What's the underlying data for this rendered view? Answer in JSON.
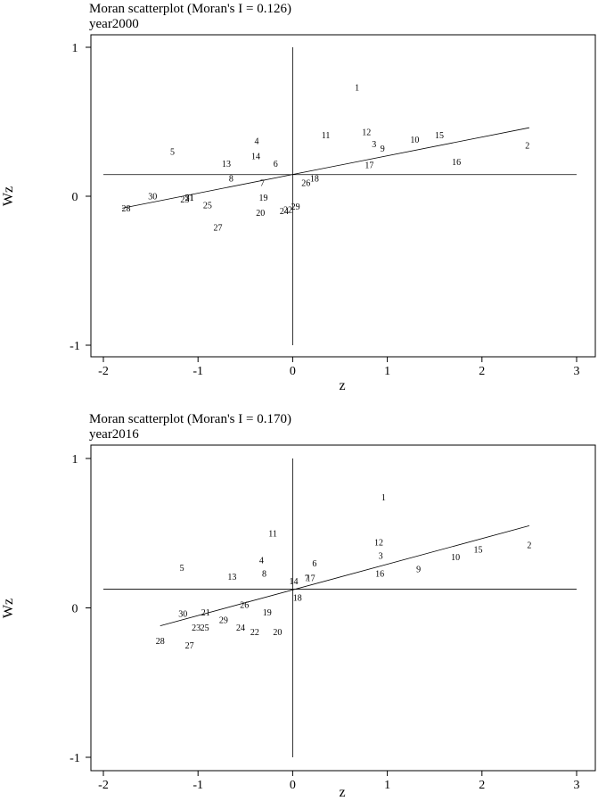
{
  "chart_data": [
    {
      "type": "scatter",
      "title": "Moran scatterplot (Moran's I = 0.126)",
      "subtitle": "year2000",
      "xlabel": "z",
      "ylabel": "Wz",
      "xlim": [
        -2,
        3
      ],
      "ylim": [
        -1,
        1
      ],
      "xticks": [
        "-2",
        "-1",
        "0",
        "1",
        "2",
        "3"
      ],
      "yticks": [
        "-1",
        "0",
        "1"
      ],
      "grid": false,
      "fit_line": {
        "x": [
          -1.8,
          2.5
        ],
        "y": [
          -0.08,
          0.46
        ]
      },
      "mean_x": 0,
      "mean_y": 0.145,
      "points": [
        {
          "label": "1",
          "x": 0.68,
          "y": 0.73
        },
        {
          "label": "2",
          "x": 2.48,
          "y": 0.34
        },
        {
          "label": "3",
          "x": 0.86,
          "y": 0.35
        },
        {
          "label": "4",
          "x": -0.38,
          "y": 0.37
        },
        {
          "label": "5",
          "x": -1.27,
          "y": 0.3
        },
        {
          "label": "6",
          "x": -0.18,
          "y": 0.22
        },
        {
          "label": "7",
          "x": -0.32,
          "y": 0.09
        },
        {
          "label": "8",
          "x": -0.65,
          "y": 0.12
        },
        {
          "label": "9",
          "x": 0.95,
          "y": 0.32
        },
        {
          "label": "10",
          "x": 1.29,
          "y": 0.38
        },
        {
          "label": "11",
          "x": 0.35,
          "y": 0.41
        },
        {
          "label": "12",
          "x": 0.78,
          "y": 0.43
        },
        {
          "label": "13",
          "x": -0.7,
          "y": 0.22
        },
        {
          "label": "14",
          "x": -0.39,
          "y": 0.27
        },
        {
          "label": "15",
          "x": 1.55,
          "y": 0.41
        },
        {
          "label": "16",
          "x": 1.73,
          "y": 0.23
        },
        {
          "label": "17",
          "x": 0.81,
          "y": 0.21
        },
        {
          "label": "18",
          "x": 0.23,
          "y": 0.12
        },
        {
          "label": "19",
          "x": -0.31,
          "y": -0.01
        },
        {
          "label": "20",
          "x": -0.34,
          "y": -0.11
        },
        {
          "label": "21",
          "x": -1.09,
          "y": -0.01
        },
        {
          "label": "22",
          "x": -0.05,
          "y": -0.09
        },
        {
          "label": "23",
          "x": -1.14,
          "y": -0.02
        },
        {
          "label": "24",
          "x": -0.09,
          "y": -0.1
        },
        {
          "label": "25",
          "x": -0.9,
          "y": -0.06
        },
        {
          "label": "26",
          "x": 0.14,
          "y": 0.09
        },
        {
          "label": "27",
          "x": -0.79,
          "y": -0.21
        },
        {
          "label": "28",
          "x": -1.76,
          "y": -0.08
        },
        {
          "label": "29",
          "x": 0.03,
          "y": -0.07
        },
        {
          "label": "30",
          "x": -1.48,
          "y": 0.0
        },
        {
          "label": "31",
          "x": -1.09,
          "y": -0.01
        }
      ]
    },
    {
      "type": "scatter",
      "title": "Moran scatterplot (Moran's I = 0.170)",
      "subtitle": "year2016",
      "xlabel": "z",
      "ylabel": "Wz",
      "xlim": [
        -2,
        3
      ],
      "ylim": [
        -1,
        1
      ],
      "xticks": [
        "-2",
        "-1",
        "0",
        "1",
        "2",
        "3"
      ],
      "yticks": [
        "-1",
        "0",
        "1"
      ],
      "grid": false,
      "fit_line": {
        "x": [
          -1.4,
          2.5
        ],
        "y": [
          -0.12,
          0.55
        ]
      },
      "mean_x": 0,
      "mean_y": 0.125,
      "points": [
        {
          "label": "1",
          "x": 0.96,
          "y": 0.74
        },
        {
          "label": "2",
          "x": 2.5,
          "y": 0.42
        },
        {
          "label": "3",
          "x": 0.93,
          "y": 0.35
        },
        {
          "label": "4",
          "x": -0.33,
          "y": 0.32
        },
        {
          "label": "5",
          "x": -1.17,
          "y": 0.27
        },
        {
          "label": "6",
          "x": 0.23,
          "y": 0.3
        },
        {
          "label": "7",
          "x": 0.15,
          "y": 0.2
        },
        {
          "label": "8",
          "x": -0.3,
          "y": 0.23
        },
        {
          "label": "9",
          "x": 1.33,
          "y": 0.26
        },
        {
          "label": "10",
          "x": 1.72,
          "y": 0.34
        },
        {
          "label": "11",
          "x": -0.21,
          "y": 0.5
        },
        {
          "label": "12",
          "x": 0.91,
          "y": 0.44
        },
        {
          "label": "13",
          "x": -0.64,
          "y": 0.21
        },
        {
          "label": "14",
          "x": 0.01,
          "y": 0.18
        },
        {
          "label": "15",
          "x": 1.96,
          "y": 0.39
        },
        {
          "label": "16",
          "x": 0.92,
          "y": 0.23
        },
        {
          "label": "17",
          "x": 0.19,
          "y": 0.2
        },
        {
          "label": "18",
          "x": 0.05,
          "y": 0.07
        },
        {
          "label": "19",
          "x": -0.27,
          "y": -0.03
        },
        {
          "label": "20",
          "x": -0.16,
          "y": -0.16
        },
        {
          "label": "21",
          "x": -0.92,
          "y": -0.03
        },
        {
          "label": "22",
          "x": -0.4,
          "y": -0.16
        },
        {
          "label": "23",
          "x": -1.02,
          "y": -0.13
        },
        {
          "label": "24",
          "x": -0.55,
          "y": -0.13
        },
        {
          "label": "25",
          "x": -0.93,
          "y": -0.13
        },
        {
          "label": "26",
          "x": -0.51,
          "y": 0.02
        },
        {
          "label": "27",
          "x": -1.09,
          "y": -0.25
        },
        {
          "label": "28",
          "x": -1.4,
          "y": -0.22
        },
        {
          "label": "29",
          "x": -0.73,
          "y": -0.08
        },
        {
          "label": "30",
          "x": -1.16,
          "y": -0.04
        }
      ]
    }
  ]
}
